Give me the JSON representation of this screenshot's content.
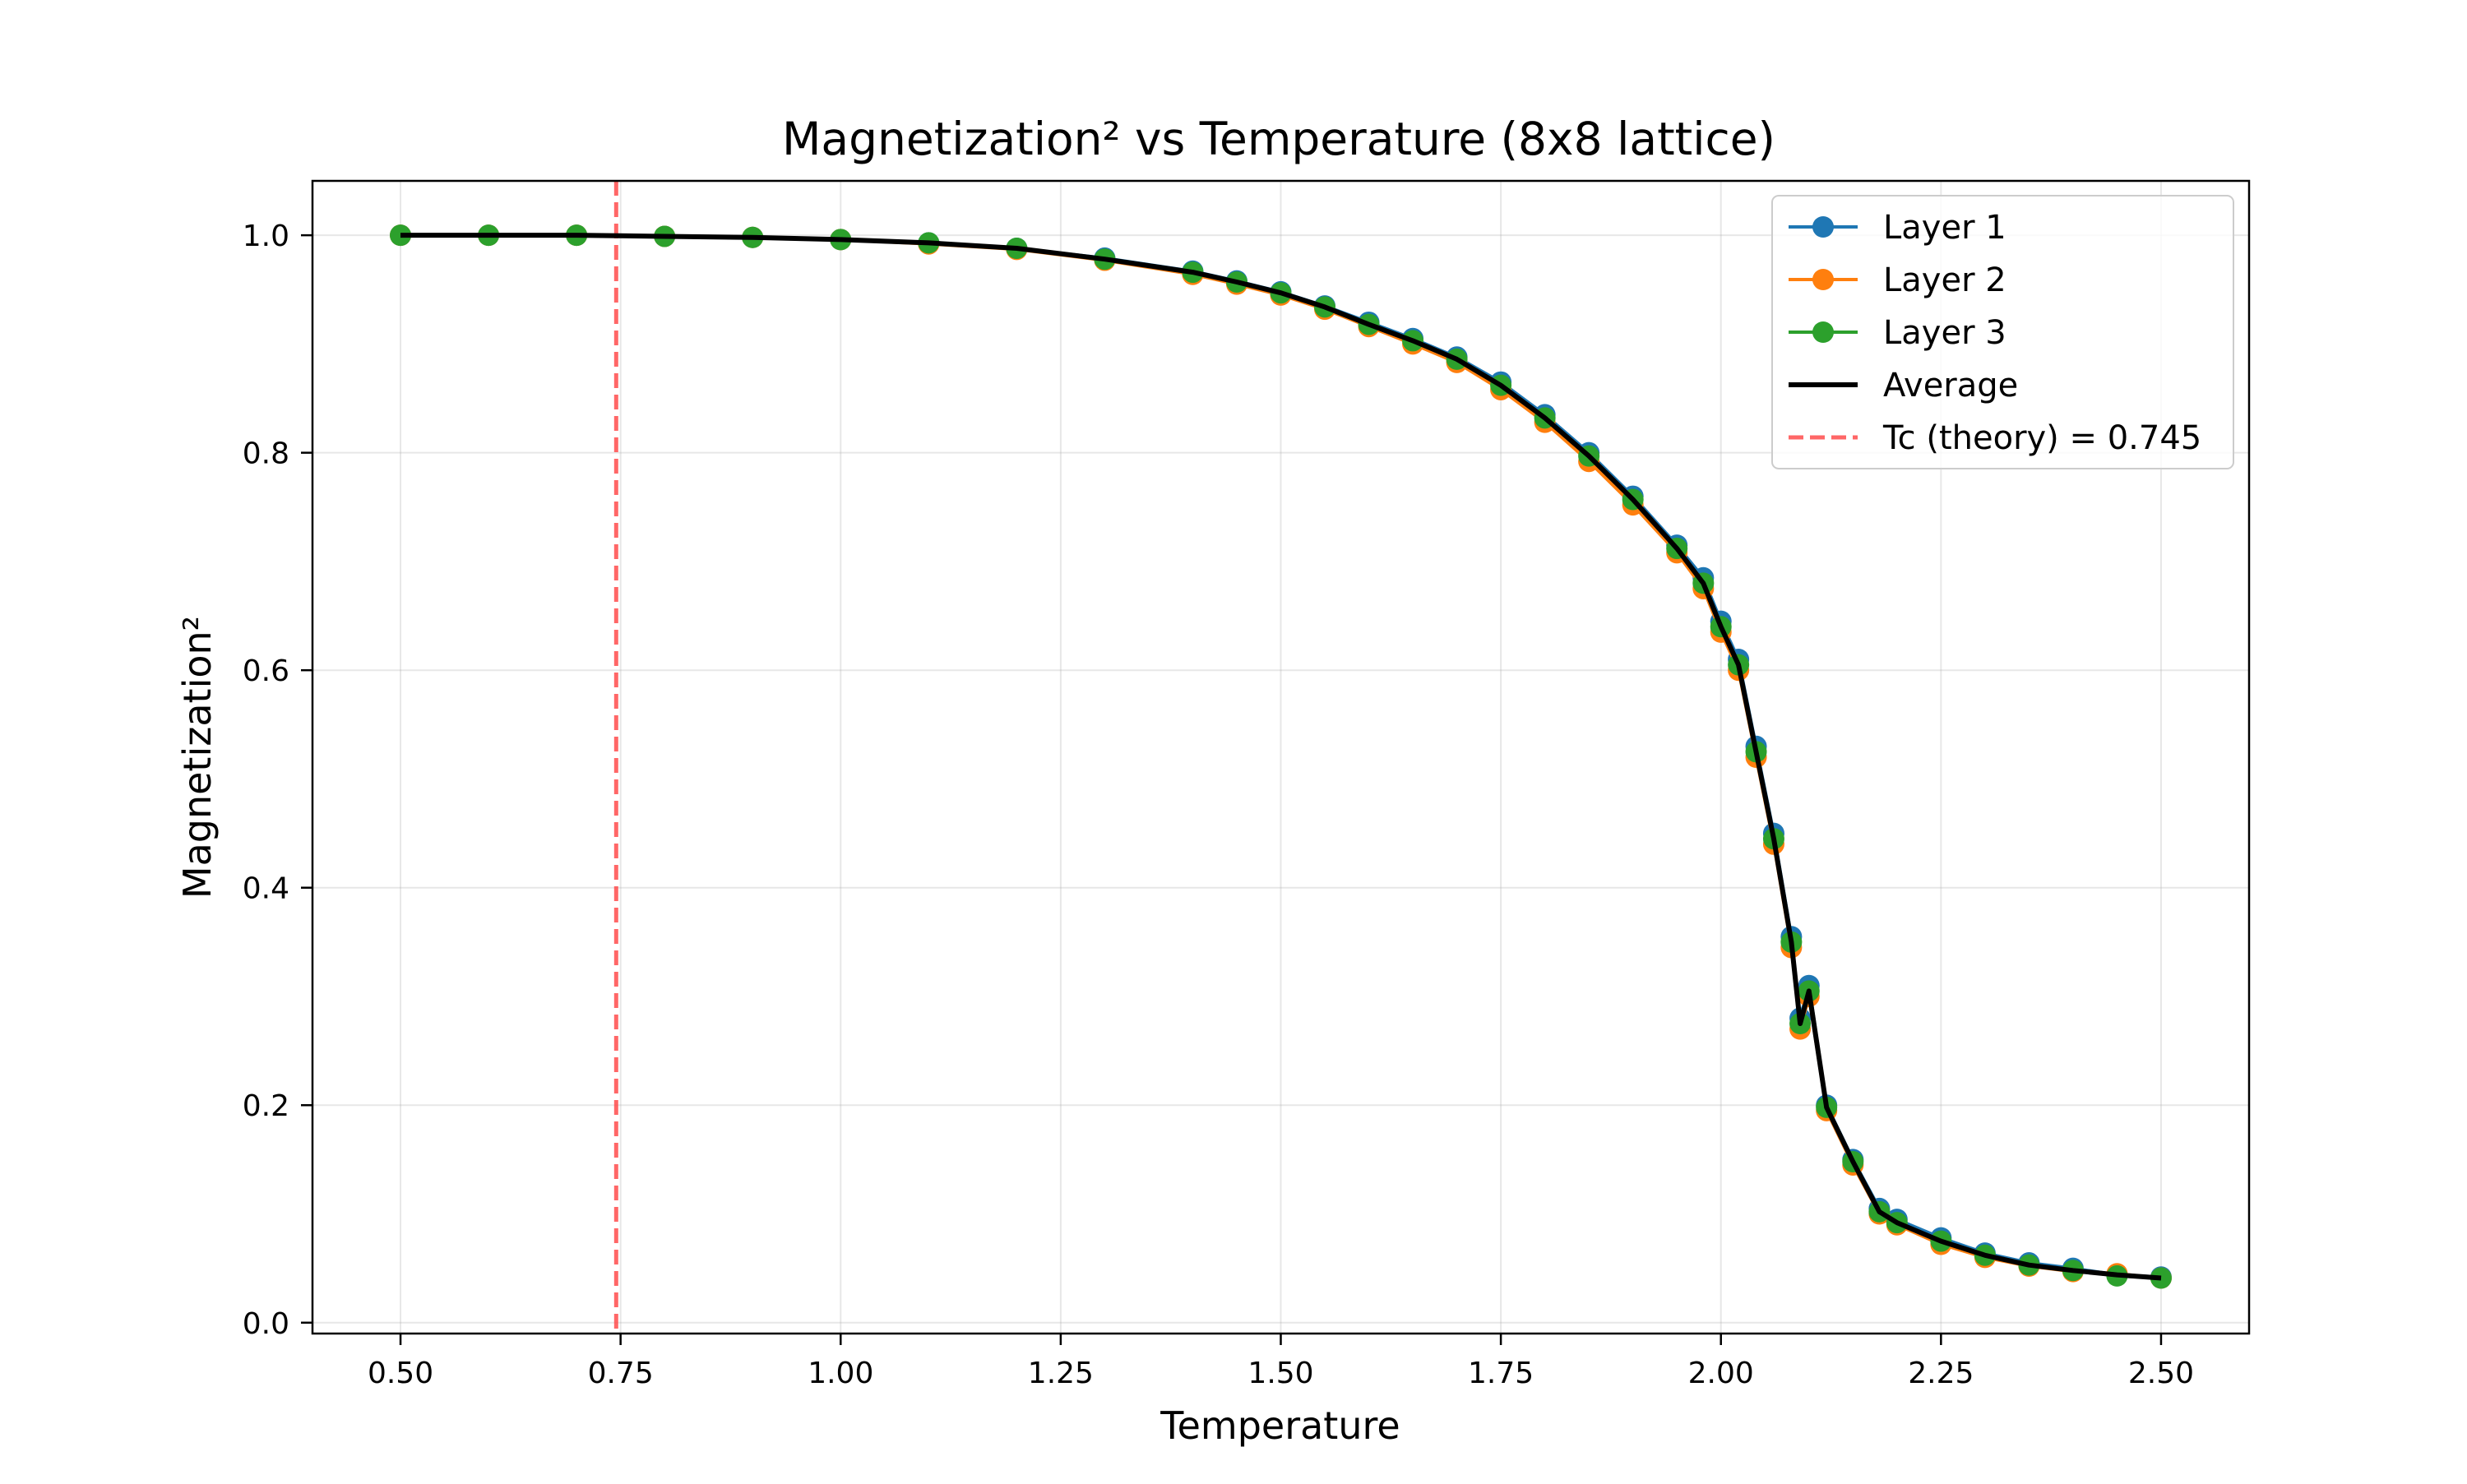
{
  "chart_data": {
    "type": "line",
    "title": "Magnetization² vs Temperature (8x8 lattice)",
    "xlabel": "Temperature",
    "ylabel": "Magnetization²",
    "xlim": [
      0.4,
      2.6
    ],
    "ylim": [
      -0.01,
      1.05
    ],
    "xticks": [
      "0.50",
      "0.75",
      "1.00",
      "1.25",
      "1.50",
      "1.75",
      "2.00",
      "2.25",
      "2.50"
    ],
    "yticks": [
      "0.0",
      "0.2",
      "0.4",
      "0.6",
      "0.8",
      "1.0"
    ],
    "grid": true,
    "legend_position": "upper-right",
    "x": [
      0.5,
      0.6,
      0.7,
      0.8,
      0.9,
      1.0,
      1.1,
      1.2,
      1.3,
      1.4,
      1.45,
      1.5,
      1.55,
      1.6,
      1.65,
      1.7,
      1.75,
      1.8,
      1.85,
      1.9,
      1.95,
      1.98,
      2.0,
      2.02,
      2.04,
      2.06,
      2.08,
      2.09,
      2.1,
      2.12,
      2.15,
      2.18,
      2.2,
      2.25,
      2.3,
      2.35,
      2.4,
      2.45,
      2.5
    ],
    "series": [
      {
        "name": "Layer 1",
        "color": "#1f77b4",
        "style": "line-marker",
        "values": [
          1.0,
          1.0,
          1.0,
          0.999,
          0.998,
          0.996,
          0.993,
          0.988,
          0.979,
          0.967,
          0.958,
          0.948,
          0.935,
          0.92,
          0.905,
          0.888,
          0.865,
          0.835,
          0.8,
          0.76,
          0.715,
          0.685,
          0.645,
          0.61,
          0.53,
          0.45,
          0.355,
          0.28,
          0.31,
          0.2,
          0.15,
          0.105,
          0.095,
          0.078,
          0.064,
          0.055,
          0.05,
          0.044,
          0.042
        ]
      },
      {
        "name": "Layer 2",
        "color": "#ff7f0e",
        "style": "line-marker",
        "values": [
          1.0,
          1.0,
          1.0,
          0.999,
          0.998,
          0.996,
          0.992,
          0.987,
          0.977,
          0.964,
          0.955,
          0.945,
          0.932,
          0.916,
          0.9,
          0.883,
          0.858,
          0.828,
          0.792,
          0.752,
          0.708,
          0.675,
          0.635,
          0.6,
          0.52,
          0.44,
          0.345,
          0.27,
          0.3,
          0.195,
          0.145,
          0.1,
          0.09,
          0.072,
          0.06,
          0.052,
          0.047,
          0.045,
          0.041
        ]
      },
      {
        "name": "Layer 3",
        "color": "#2ca02c",
        "style": "line-marker",
        "values": [
          1.0,
          1.0,
          1.0,
          0.999,
          0.998,
          0.996,
          0.993,
          0.988,
          0.978,
          0.966,
          0.957,
          0.947,
          0.934,
          0.918,
          0.903,
          0.886,
          0.862,
          0.832,
          0.797,
          0.757,
          0.712,
          0.68,
          0.64,
          0.605,
          0.525,
          0.445,
          0.35,
          0.275,
          0.305,
          0.198,
          0.148,
          0.102,
          0.092,
          0.075,
          0.062,
          0.053,
          0.048,
          0.043,
          0.041
        ]
      },
      {
        "name": "Average",
        "color": "#000000",
        "style": "line",
        "values": [
          1.0,
          1.0,
          1.0,
          0.999,
          0.998,
          0.996,
          0.993,
          0.988,
          0.978,
          0.966,
          0.957,
          0.947,
          0.934,
          0.918,
          0.903,
          0.886,
          0.862,
          0.832,
          0.797,
          0.757,
          0.712,
          0.68,
          0.64,
          0.605,
          0.525,
          0.445,
          0.35,
          0.275,
          0.305,
          0.198,
          0.148,
          0.102,
          0.092,
          0.075,
          0.062,
          0.053,
          0.048,
          0.044,
          0.041
        ]
      }
    ],
    "annotations": [
      {
        "type": "vline",
        "x": 0.745,
        "color": "#ff4d4d",
        "style": "dashed",
        "label": "Tc (theory) = 0.745"
      }
    ]
  }
}
